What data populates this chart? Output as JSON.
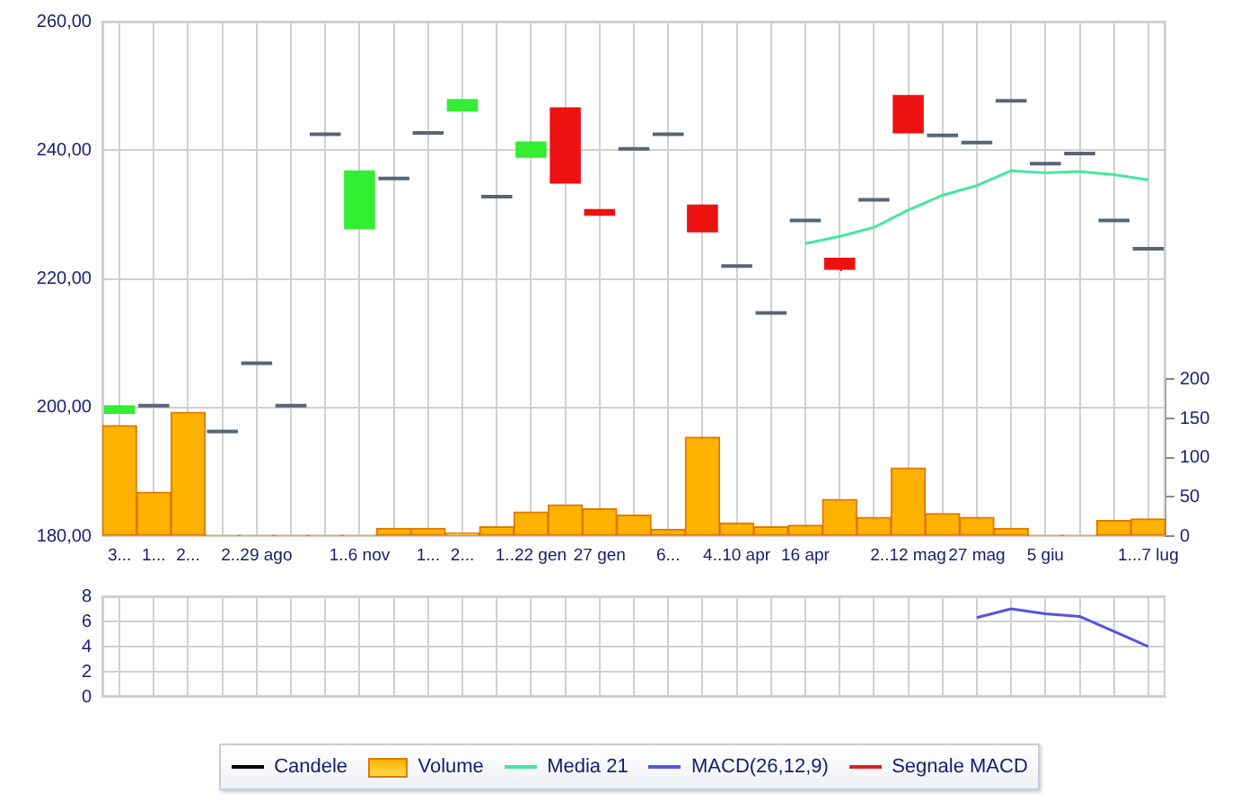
{
  "chart_data": [
    {
      "type": "candlestick",
      "categories": [
        "3...",
        "1...",
        "2...",
        null,
        "2..29 ago",
        null,
        null,
        "1..6 nov",
        null,
        "1...",
        "2...",
        null,
        "1..22 gen",
        null,
        "27 gen",
        null,
        "6...",
        null,
        "4..10 apr",
        null,
        "16 apr",
        null,
        null,
        "2..12 mag",
        null,
        "27 mag",
        null,
        "5 giu",
        null,
        null,
        "1...7 lug"
      ],
      "series": [
        {
          "name": "Candele",
          "color": "#000000",
          "colors": [
            "#33ee33",
            "#5a6478",
            null,
            "#5a6478",
            "#5a6478",
            "#5a6478",
            "#5a6478",
            "#33ee33",
            "#5a6478",
            "#5a6478",
            "#33ee33",
            "#5a6478",
            "#33ee33",
            "#ee1111",
            "#ee1111",
            "#5a6478",
            "#5a6478",
            "#ee1111",
            "#5a6478",
            "#5a6478",
            "#5a6478",
            "#ee1111",
            "#5a6478",
            "#ee1111",
            "#5a6478",
            "#5a6478",
            "#5a6478",
            "#5a6478",
            "#5a6478",
            "#5a6478",
            "#5a6478"
          ],
          "ohlc": [
            [
              199.3,
              200.1,
              199.3,
              200.1
            ],
            [
              200.3,
              200.3,
              200.3,
              200.3
            ],
            null,
            [
              196.3,
              196.3,
              196.3,
              196.3
            ],
            [
              206.9,
              206.9,
              206.9,
              206.9
            ],
            [
              200.3,
              200.3,
              200.3,
              200.3
            ],
            [
              242.5,
              242.5,
              242.5,
              242.5
            ],
            [
              228.0,
              236.6,
              228.0,
              236.6
            ],
            [
              235.6,
              235.6,
              235.6,
              235.6
            ],
            [
              242.7,
              242.7,
              242.7,
              242.7
            ],
            [
              246.3,
              247.7,
              246.3,
              247.7
            ],
            [
              232.8,
              232.8,
              232.8,
              232.8
            ],
            [
              239.1,
              241.1,
              239.1,
              241.1
            ],
            [
              246.4,
              246.4,
              235.1,
              235.1
            ],
            [
              230.6,
              230.6,
              230.1,
              230.1
            ],
            [
              240.2,
              240.2,
              240.2,
              240.2
            ],
            [
              242.5,
              242.5,
              242.5,
              242.5
            ],
            [
              231.3,
              231.3,
              227.5,
              227.5
            ],
            [
              222.0,
              222.0,
              222.0,
              222.0
            ],
            [
              214.7,
              214.7,
              214.7,
              214.7
            ],
            [
              229.1,
              229.1,
              229.1,
              229.1
            ],
            [
              223.0,
              223.0,
              221.2,
              221.7
            ],
            [
              232.3,
              232.3,
              232.3,
              232.3
            ],
            [
              248.3,
              248.3,
              242.9,
              242.9
            ],
            [
              242.3,
              242.3,
              242.3,
              242.3
            ],
            [
              241.2,
              241.2,
              241.2,
              241.2
            ],
            [
              247.7,
              247.7,
              247.7,
              247.7
            ],
            [
              237.9,
              237.9,
              237.9,
              237.9
            ],
            [
              239.5,
              239.5,
              239.5,
              239.5
            ],
            [
              229.1,
              229.1,
              229.1,
              229.1
            ],
            [
              224.7,
              224.7,
              224.7,
              224.7
            ]
          ]
        },
        {
          "name": "Volume",
          "type": "bar",
          "axis": "y2",
          "color": "#ffb300",
          "values": [
            141,
            56,
            158,
            1,
            1,
            1,
            1,
            1,
            10,
            10,
            4,
            12,
            31,
            40,
            35,
            27,
            9,
            126,
            17,
            12,
            14,
            47,
            24,
            87,
            29,
            24,
            10,
            1,
            1,
            20,
            22
          ]
        },
        {
          "name": "Media 21",
          "type": "line",
          "color": "#44e8a0",
          "values": [
            null,
            null,
            null,
            null,
            null,
            null,
            null,
            null,
            null,
            null,
            null,
            null,
            null,
            null,
            null,
            null,
            null,
            null,
            null,
            null,
            225.5,
            226.6,
            228.0,
            230.7,
            233.0,
            234.5,
            236.8,
            236.5,
            236.7,
            236.2,
            235.4
          ]
        }
      ],
      "ylim": [
        180,
        260
      ],
      "yticks": [
        {
          "value": 180,
          "label": "180,00"
        },
        {
          "value": 200,
          "label": "200,00"
        },
        {
          "value": 220,
          "label": "220,00"
        },
        {
          "value": 240,
          "label": "240,00"
        },
        {
          "value": 260,
          "label": "260,00"
        }
      ],
      "y2lim": [
        0,
        200
      ],
      "y2ticks": [
        0,
        50,
        100,
        150,
        200
      ],
      "grid": true,
      "legend": "bottom",
      "marker": "none"
    },
    {
      "type": "line",
      "categories": [
        null,
        null,
        null,
        null,
        null,
        null,
        null,
        null,
        null,
        null,
        null,
        null,
        null,
        null,
        null,
        null,
        null,
        null,
        null,
        null,
        null,
        null,
        null,
        null,
        null,
        null,
        null,
        null,
        null,
        null,
        null
      ],
      "series": [
        {
          "name": "MACD(26,12,9)",
          "color": "#5555dd",
          "values": [
            null,
            null,
            null,
            null,
            null,
            null,
            null,
            null,
            null,
            null,
            null,
            null,
            null,
            null,
            null,
            null,
            null,
            null,
            null,
            null,
            null,
            null,
            null,
            null,
            null,
            6.3,
            7.0,
            6.6,
            6.4,
            5.2,
            4.0
          ]
        },
        {
          "name": "Segnale MACD",
          "color": "#dd2222",
          "values": [
            null,
            null,
            null,
            null,
            null,
            null,
            null,
            null,
            null,
            null,
            null,
            null,
            null,
            null,
            null,
            null,
            null,
            null,
            null,
            null,
            null,
            null,
            null,
            null,
            null,
            null,
            null,
            null,
            null,
            null,
            null
          ]
        }
      ],
      "ylim": [
        0,
        8
      ],
      "yticks": [
        0,
        2,
        4,
        6,
        8
      ],
      "grid": true,
      "legend": "bottom",
      "tick_labels": "y",
      "marker": "none"
    }
  ]
}
